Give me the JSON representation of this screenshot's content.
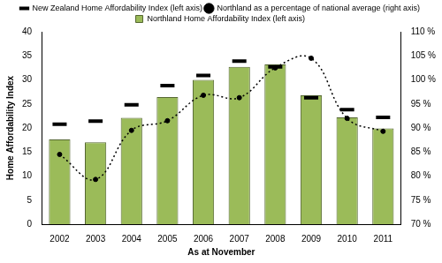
{
  "chart_data": {
    "type": "bar",
    "y_label": "Home Affordability Index",
    "x_label": "As at November",
    "categories": [
      "2002",
      "2003",
      "2004",
      "2005",
      "2006",
      "2007",
      "2008",
      "2009",
      "2010",
      "2011"
    ],
    "series": [
      {
        "name": "Northland Home Affordability Index (left axis)",
        "type": "bar",
        "color": "#9bbb59",
        "values": [
          17.6,
          17.0,
          22.1,
          26.4,
          30.0,
          32.7,
          33.2,
          26.8,
          22.2,
          19.9
        ]
      },
      {
        "name": "New Zealand Home Affordability Index (left axis)",
        "type": "scatter",
        "marker": "dash",
        "color": "#000000",
        "values": [
          20.8,
          21.4,
          24.8,
          28.8,
          30.9,
          33.9,
          32.7,
          26.3,
          23.8,
          22.2
        ]
      },
      {
        "name": "Northland as a percentage of national average (right axis)",
        "type": "line",
        "marker": "circle",
        "line_style": "dotted",
        "color": "#000000",
        "axis": "y2",
        "values": [
          84.5,
          79.3,
          89.5,
          91.5,
          96.8,
          96.3,
          102.5,
          104.5,
          92.0,
          89.3
        ]
      }
    ],
    "ylim": [
      0,
      40
    ],
    "yticks": [
      0,
      5,
      10,
      15,
      20,
      25,
      30,
      35,
      40
    ],
    "y2lim": [
      70,
      110
    ],
    "y2ticks": [
      {
        "value": 70,
        "label": "70 %"
      },
      {
        "value": 75,
        "label": "75 %"
      },
      {
        "value": 80,
        "label": "80 %"
      },
      {
        "value": 85,
        "label": "85 %"
      },
      {
        "value": 90,
        "label": "90 %"
      },
      {
        "value": 95,
        "label": "95 %"
      },
      {
        "value": 100,
        "label": "100 %"
      },
      {
        "value": 105,
        "label": "105 %"
      },
      {
        "value": 110,
        "label": "110 %"
      }
    ],
    "grid": false,
    "legend": "top"
  }
}
